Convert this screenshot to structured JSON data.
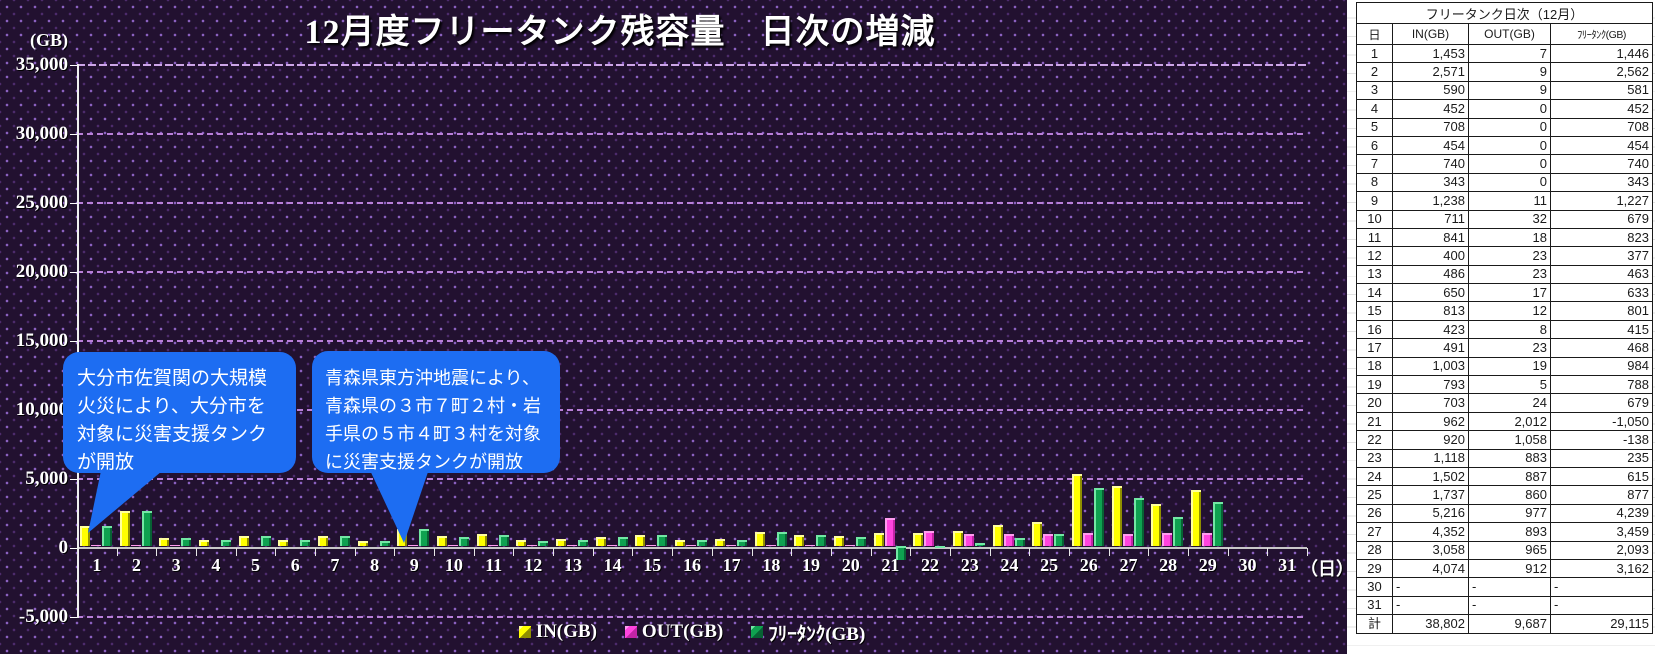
{
  "chart_data": {
    "type": "bar",
    "title": "12月度フリータンク残容量　日次の増減",
    "unit_label": "(GB)",
    "x_axis_suffix": "（日）",
    "xlabel": "日",
    "ylabel": "GB",
    "ylim": [
      -5000,
      35000
    ],
    "grid": true,
    "legend_position": "bottom",
    "yticks": [
      {
        "label": "35,000",
        "value": 35000
      },
      {
        "label": "30,000",
        "value": 30000
      },
      {
        "label": "25,000",
        "value": 25000
      },
      {
        "label": "20,000",
        "value": 20000
      },
      {
        "label": "15,000",
        "value": 15000
      },
      {
        "label": "10,000",
        "value": 10000
      },
      {
        "label": "5,000",
        "value": 5000
      },
      {
        "label": "0",
        "value": 0
      },
      {
        "label": "-5,000",
        "value": -5000
      }
    ],
    "categories": [
      1,
      2,
      3,
      4,
      5,
      6,
      7,
      8,
      9,
      10,
      11,
      12,
      13,
      14,
      15,
      16,
      17,
      18,
      19,
      20,
      21,
      22,
      23,
      24,
      25,
      26,
      27,
      28,
      29,
      30,
      31
    ],
    "series": [
      {
        "name": "IN(GB)",
        "legend_label": "IN(GB)",
        "color": "#FFFF00",
        "color_light": "#FFFF9E",
        "color_dark": "#8F8F00",
        "values": [
          1453,
          2571,
          590,
          452,
          708,
          454,
          740,
          343,
          1238,
          711,
          841,
          400,
          486,
          650,
          813,
          423,
          491,
          1003,
          793,
          703,
          962,
          920,
          1118,
          1502,
          1737,
          5216,
          4352,
          3058,
          4074,
          null,
          null
        ]
      },
      {
        "name": "OUT(GB)",
        "legend_label": "OUT(GB)",
        "color": "#FF44DE",
        "color_light": "#FF9BEF",
        "color_dark": "#C224A6",
        "values": [
          7,
          9,
          9,
          0,
          0,
          0,
          0,
          0,
          11,
          32,
          18,
          23,
          23,
          17,
          12,
          8,
          23,
          19,
          5,
          24,
          2012,
          1058,
          883,
          887,
          860,
          977,
          893,
          965,
          912,
          null,
          null
        ]
      },
      {
        "name": "フリータンク(GB)",
        "legend_label": "ﾌﾘｰﾀﾝｸ(GB)",
        "color": "#0FA150",
        "color_light": "#72E8A4",
        "color_dark": "#076234",
        "values": [
          1446,
          2562,
          581,
          452,
          708,
          454,
          740,
          343,
          1227,
          679,
          823,
          377,
          463,
          633,
          801,
          415,
          468,
          984,
          788,
          679,
          -1050,
          -138,
          235,
          615,
          877,
          4239,
          3459,
          2093,
          3162,
          null,
          null
        ]
      }
    ],
    "annotations": [
      {
        "text": "大分市佐賀関の大規模\n火災により、大分市を\n対象に災害支援タンク\nが開放",
        "color": "#1D6DF2"
      },
      {
        "text": "青森県東方沖地震により、\n青森県の３市７町２村・岩\n手県の５市４町３村を対象\nに災害支援タンクが開放",
        "color": "#1D6DF2"
      }
    ]
  },
  "table": {
    "title": "フリータンク日次（12月）",
    "columns": [
      "日",
      "IN(GB)",
      "OUT(GB)",
      "ﾌﾘｰﾀﾝｸ(GB)"
    ],
    "rows": [
      [
        "1",
        "1,453",
        "7",
        "1,446"
      ],
      [
        "2",
        "2,571",
        "9",
        "2,562"
      ],
      [
        "3",
        "590",
        "9",
        "581"
      ],
      [
        "4",
        "452",
        "0",
        "452"
      ],
      [
        "5",
        "708",
        "0",
        "708"
      ],
      [
        "6",
        "454",
        "0",
        "454"
      ],
      [
        "7",
        "740",
        "0",
        "740"
      ],
      [
        "8",
        "343",
        "0",
        "343"
      ],
      [
        "9",
        "1,238",
        "11",
        "1,227"
      ],
      [
        "10",
        "711",
        "32",
        "679"
      ],
      [
        "11",
        "841",
        "18",
        "823"
      ],
      [
        "12",
        "400",
        "23",
        "377"
      ],
      [
        "13",
        "486",
        "23",
        "463"
      ],
      [
        "14",
        "650",
        "17",
        "633"
      ],
      [
        "15",
        "813",
        "12",
        "801"
      ],
      [
        "16",
        "423",
        "8",
        "415"
      ],
      [
        "17",
        "491",
        "23",
        "468"
      ],
      [
        "18",
        "1,003",
        "19",
        "984"
      ],
      [
        "19",
        "793",
        "5",
        "788"
      ],
      [
        "20",
        "703",
        "24",
        "679"
      ],
      [
        "21",
        "962",
        "2,012",
        "-1,050"
      ],
      [
        "22",
        "920",
        "1,058",
        "-138"
      ],
      [
        "23",
        "1,118",
        "883",
        "235"
      ],
      [
        "24",
        "1,502",
        "887",
        "615"
      ],
      [
        "25",
        "1,737",
        "860",
        "877"
      ],
      [
        "26",
        "5,216",
        "977",
        "4,239"
      ],
      [
        "27",
        "4,352",
        "893",
        "3,459"
      ],
      [
        "28",
        "3,058",
        "965",
        "2,093"
      ],
      [
        "29",
        "4,074",
        "912",
        "3,162"
      ],
      [
        "30",
        "-",
        "-",
        "-"
      ],
      [
        "31",
        "-",
        "-",
        "-"
      ]
    ],
    "total_row": [
      "計",
      "38,802",
      "9,687",
      "29,115"
    ]
  }
}
